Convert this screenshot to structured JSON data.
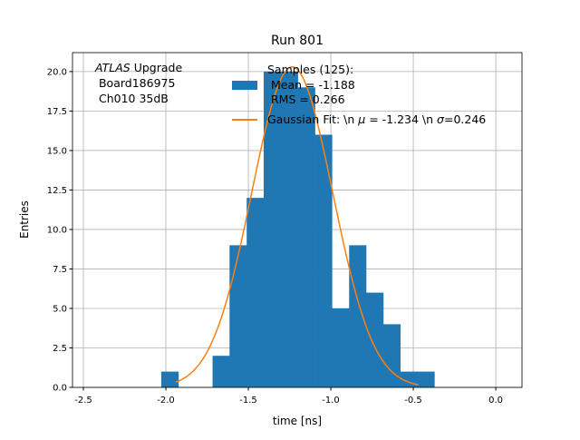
{
  "chart_data": {
    "type": "bar",
    "title": "Run 801",
    "xlabel": "time [ns]",
    "ylabel": "Entries",
    "xlim": [
      -2.566,
      0.159
    ],
    "ylim": [
      0,
      21.2
    ],
    "grid": true,
    "xticks": [
      "-2.5",
      "-2.0",
      "-1.5",
      "-1.0",
      "-0.5",
      "0.0"
    ],
    "xtick_values": [
      -2.5,
      -2.0,
      -1.5,
      -1.0,
      -0.5,
      0.0
    ],
    "yticks": [
      "0.0",
      "2.5",
      "5.0",
      "7.5",
      "10.0",
      "12.5",
      "15.0",
      "17.5",
      "20.0"
    ],
    "ytick_values": [
      0,
      2.5,
      5,
      7.5,
      10,
      12.5,
      15,
      17.5,
      20
    ],
    "bin_edges": [
      -2.028,
      -1.924,
      -1.821,
      -1.717,
      -1.614,
      -1.51,
      -1.407,
      -1.303,
      -1.2,
      -1.096,
      -0.993,
      -0.889,
      -0.786,
      -0.682,
      -0.579,
      -0.475,
      -0.372
    ],
    "counts": [
      1,
      0,
      0,
      2,
      9,
      12,
      20,
      20,
      19,
      16,
      5,
      9,
      6,
      4,
      1,
      1
    ],
    "fit": {
      "mu": -1.234,
      "sigma": 0.246,
      "amplitude": 20.3,
      "range": [
        -1.94,
        -0.47
      ]
    },
    "colors": {
      "hist": "#1f77b4",
      "fit": "#ff7f0e"
    },
    "legend": {
      "placement": "top-center",
      "hist_label": [
        "Samples (125):",
        " Mean = -1.188",
        " RMS = 0.266"
      ],
      "fit_label_prefix": "Gaussian Fit: \\n ",
      "fit_label_mu": "μ",
      "fit_label_mid": " = -1.234 \\n ",
      "fit_label_sigma": "σ",
      "fit_label_suffix": "=0.246"
    },
    "annotation": {
      "italic": "ATLAS",
      "rest": " Upgrade",
      "line2": " Board186975",
      "line3": " Ch010 35dB"
    }
  }
}
